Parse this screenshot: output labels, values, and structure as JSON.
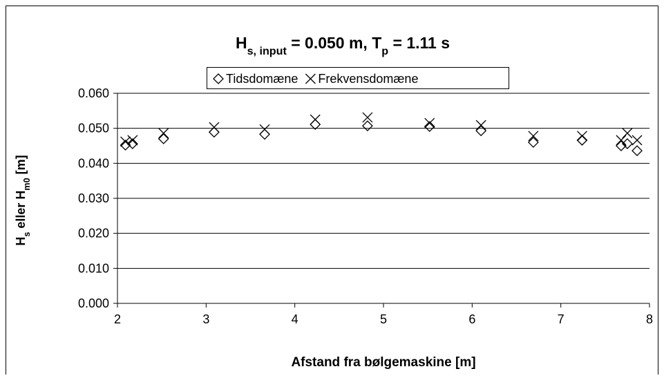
{
  "chart_data": {
    "type": "scatter",
    "title_parts": [
      {
        "text": "H"
      },
      {
        "text": "s, input",
        "sub": true
      },
      {
        "text": " = 0.050 m, T"
      },
      {
        "text": "p",
        "sub": true
      },
      {
        "text": " = 1.11 s"
      }
    ],
    "xlabel": "Afstand fra bølgemaskine [m]",
    "ylabel_parts": [
      {
        "text": "H"
      },
      {
        "text": "s",
        "sub": true
      },
      {
        "text": " eller H"
      },
      {
        "text": "m0",
        "sub": true
      },
      {
        "text": " [m]"
      }
    ],
    "xlim": [
      2,
      8
    ],
    "xticks": [
      2,
      3,
      4,
      5,
      6,
      7,
      8
    ],
    "ylim": [
      0,
      0.06
    ],
    "yticks": [
      {
        "value": 0,
        "label": "0.000"
      },
      {
        "value": 0.01,
        "label": "0.010"
      },
      {
        "value": 0.02,
        "label": "0.020"
      },
      {
        "value": 0.03,
        "label": "0.030"
      },
      {
        "value": 0.04,
        "label": "0.040"
      },
      {
        "value": 0.05,
        "label": "0.050"
      },
      {
        "value": 0.06,
        "label": "0.060"
      }
    ],
    "grid": true,
    "legend": "top",
    "series": [
      {
        "name": "Tidsdomæne",
        "marker": "diamond",
        "color": "#000000",
        "x": [
          2.09,
          2.17,
          2.52,
          3.09,
          3.66,
          4.23,
          4.82,
          5.52,
          6.1,
          6.69,
          7.24,
          7.68,
          7.75,
          7.86
        ],
        "values": [
          0.0452,
          0.0456,
          0.047,
          0.0489,
          0.0483,
          0.0511,
          0.0507,
          0.0505,
          0.0493,
          0.046,
          0.0466,
          0.045,
          0.0456,
          0.0436
        ]
      },
      {
        "name": "Frekvensdomæne",
        "marker": "cross",
        "color": "#000000",
        "x": [
          2.09,
          2.17,
          2.52,
          3.09,
          3.66,
          4.23,
          4.82,
          5.52,
          6.1,
          6.69,
          7.24,
          7.68,
          7.75,
          7.86
        ],
        "values": [
          0.0462,
          0.0466,
          0.0486,
          0.0503,
          0.0497,
          0.0525,
          0.0531,
          0.0515,
          0.0509,
          0.0478,
          0.0478,
          0.0466,
          0.0486,
          0.0466
        ]
      }
    ]
  }
}
